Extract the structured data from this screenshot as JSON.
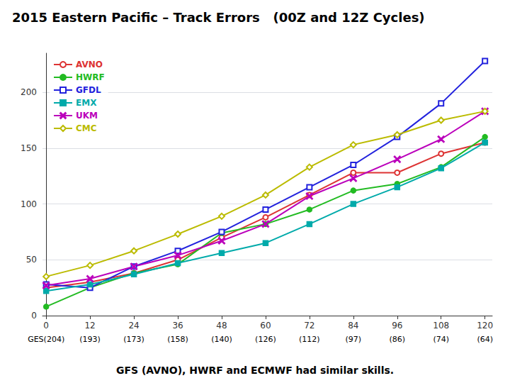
{
  "chart_data": {
    "type": "line",
    "title": "2015 Eastern Pacific – Track Errors   (00Z and 12Z Cycles)",
    "subtitle": "GFS (AVNO), HWRF and ECMWF had similar skills.",
    "x": [
      0,
      12,
      24,
      36,
      48,
      60,
      72,
      84,
      96,
      108,
      120
    ],
    "xlim": [
      -1,
      122
    ],
    "xticks": [
      0,
      12,
      24,
      36,
      48,
      60,
      72,
      84,
      96,
      108,
      120
    ],
    "ylim": [
      0,
      235
    ],
    "yticks": [
      0,
      50,
      100,
      150,
      200
    ],
    "grid": true,
    "legend": "upper left",
    "annotations": [
      {
        "x": 0,
        "text": "GES(204)"
      },
      {
        "x": 12,
        "text": "(193)"
      },
      {
        "x": 24,
        "text": "(173)"
      },
      {
        "x": 36,
        "text": "(158)"
      },
      {
        "x": 48,
        "text": "(140)"
      },
      {
        "x": 60,
        "text": "(126)"
      },
      {
        "x": 72,
        "text": "(112)"
      },
      {
        "x": 84,
        "text": "(97)"
      },
      {
        "x": 96,
        "text": "(86)"
      },
      {
        "x": 108,
        "text": "(74)"
      },
      {
        "x": 120,
        "text": "(64)"
      }
    ],
    "series": [
      {
        "name": "AVNO",
        "color": "#dd3333",
        "marker": "open circle",
        "values": [
          25,
          30,
          38,
          50,
          70,
          88,
          108,
          128,
          128,
          145,
          155
        ]
      },
      {
        "name": "HWRF",
        "color": "#22bb22",
        "marker": "circle",
        "values": [
          8,
          25,
          38,
          46,
          74,
          82,
          95,
          112,
          118,
          133,
          160
        ]
      },
      {
        "name": "GFDL",
        "color": "#2222dd",
        "marker": "open square",
        "values": [
          28,
          25,
          44,
          58,
          75,
          95,
          115,
          135,
          160,
          190,
          228
        ]
      },
      {
        "name": "EMX",
        "color": "#00aaaa",
        "marker": "square",
        "values": [
          22,
          28,
          37,
          47,
          56,
          65,
          82,
          100,
          115,
          132,
          155
        ]
      },
      {
        "name": "UKM",
        "color": "#bb00bb",
        "marker": "x",
        "values": [
          27,
          33,
          44,
          54,
          67,
          82,
          107,
          123,
          140,
          158,
          183
        ]
      },
      {
        "name": "CMC",
        "color": "#bbbb00",
        "marker": "open diamond",
        "values": [
          35,
          45,
          58,
          73,
          89,
          108,
          133,
          153,
          162,
          175,
          183
        ]
      }
    ]
  }
}
